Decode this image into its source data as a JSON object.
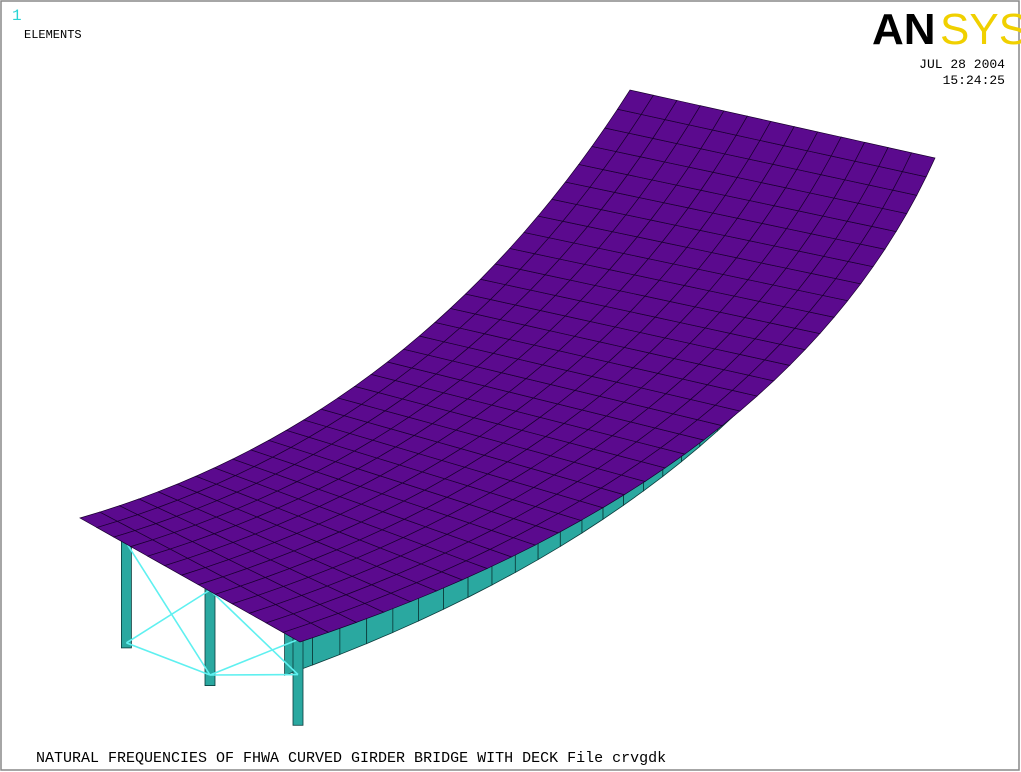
{
  "window": {
    "number": "1",
    "label": "ELEMENTS",
    "logo_part1": "AN",
    "logo_part2": "SYS",
    "date": "JUL 28 2004",
    "time": "15:24:25",
    "title": "NATURAL FREQUENCIES OF FHWA CURVED GIRDER BRIDGE WITH DECK File crvgdk"
  }
}
